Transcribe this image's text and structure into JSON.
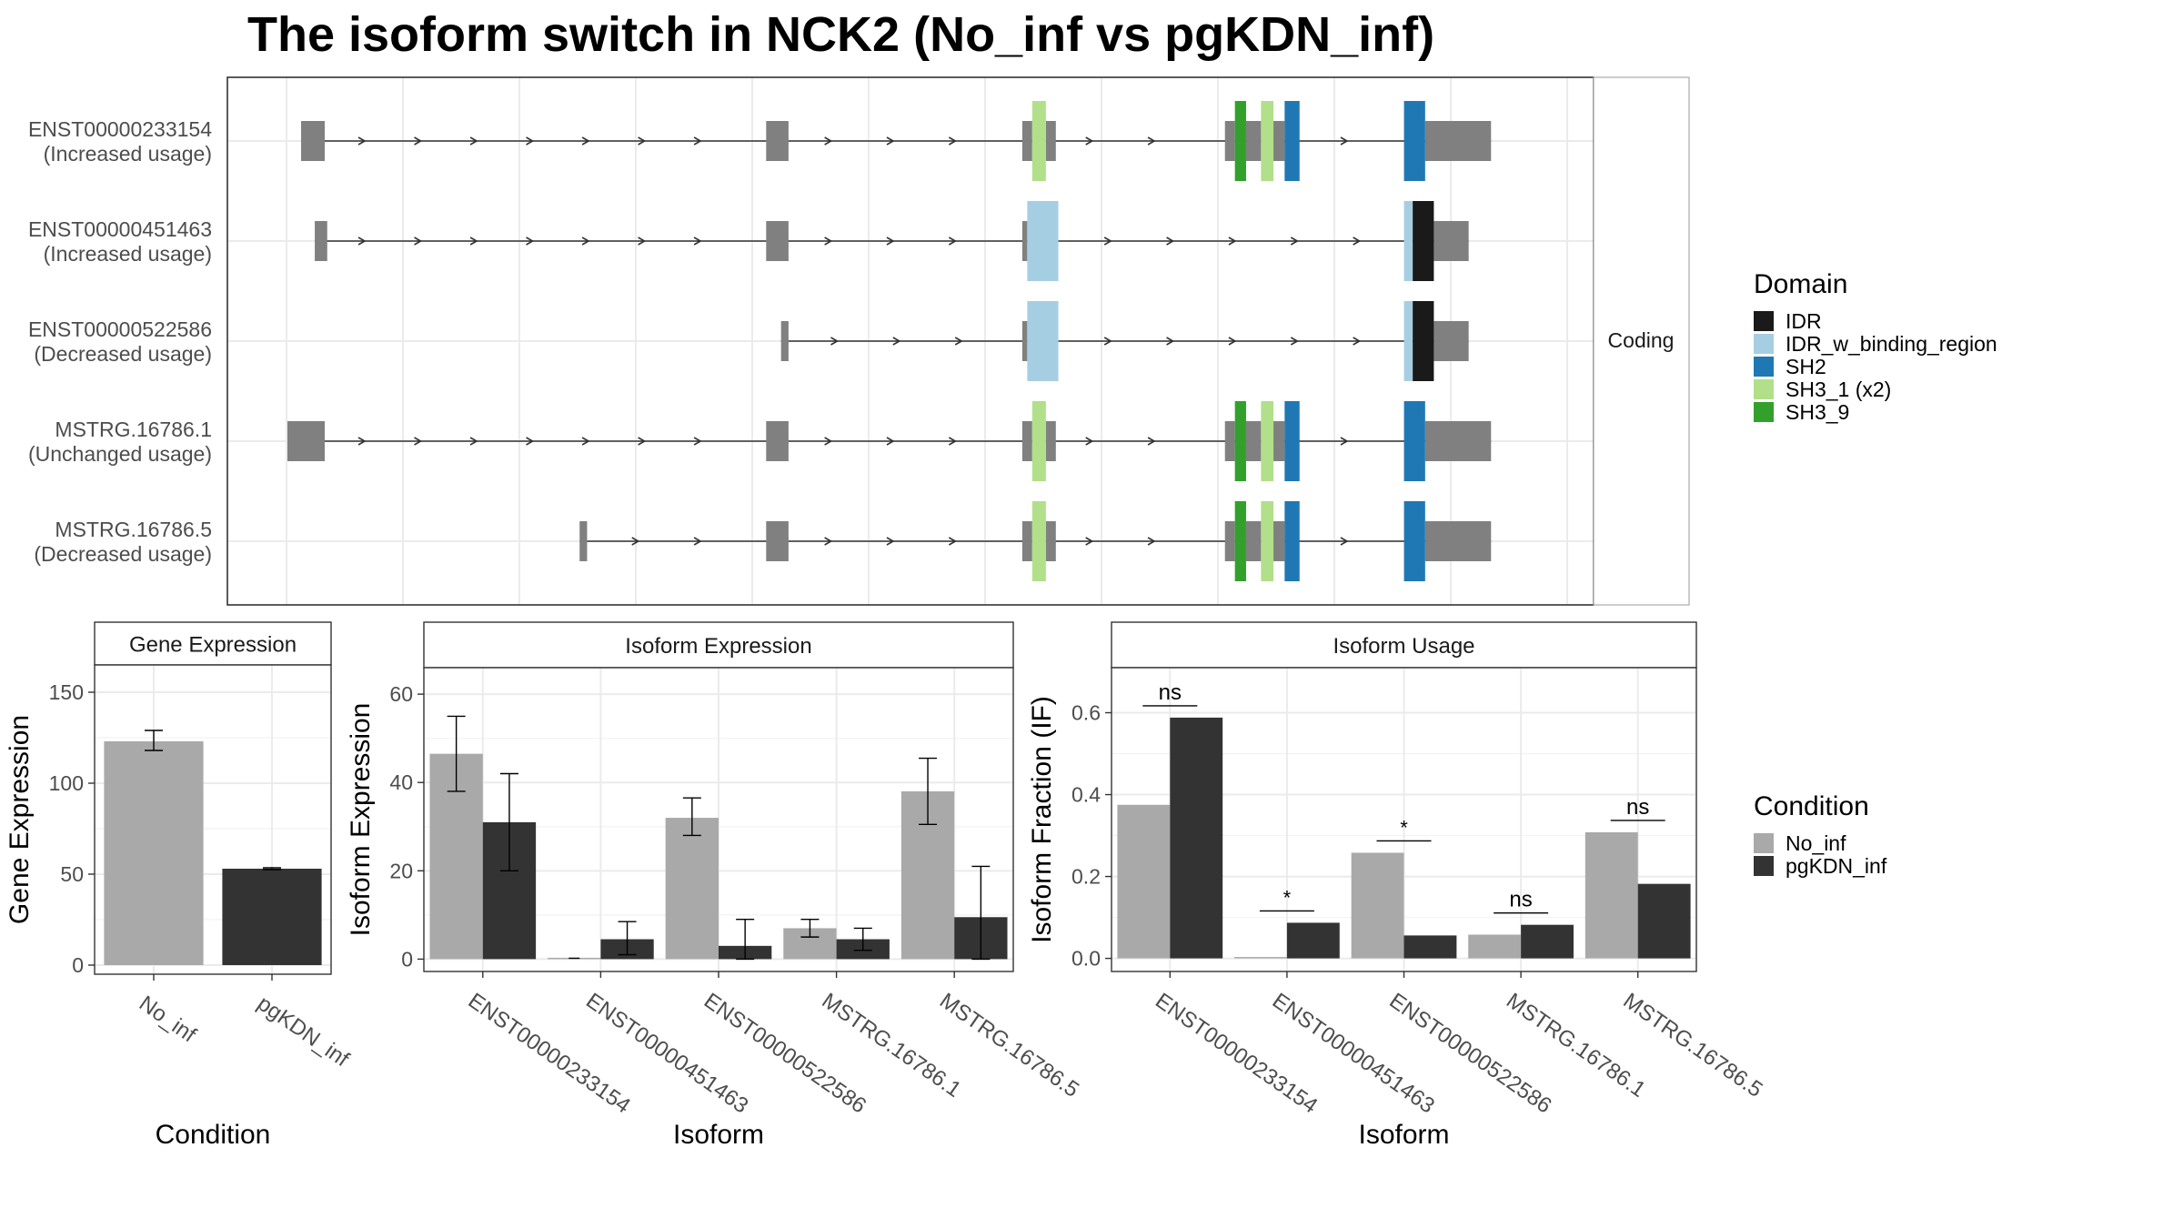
{
  "figure_title": "The isoform switch in NCK2 (No_inf vs pgKDN_inf)",
  "colors": {
    "exon": "#808080",
    "no_inf": "#A9A9A9",
    "pgkdn_inf": "#333333",
    "grid": "#EBEBEB",
    "IDR": "#1A1A1A",
    "IDR_w_binding_region": "#A6CEE3",
    "SH2": "#1F78B4",
    "SH3_1": "#B2DF8A",
    "SH3_9": "#33A02C"
  },
  "structure": {
    "facet_label": "Coding",
    "x_range": [
      0,
      100
    ],
    "transcripts": [
      {
        "id": "ENST00000233154",
        "usage": "(Increased usage)",
        "utr": [
          [
            1.1,
            3.0
          ],
          [
            38.5,
            40.3
          ],
          [
            59.1,
            59.9
          ],
          [
            61.0,
            61.8
          ],
          [
            75.4,
            76.2
          ],
          [
            77.1,
            78.3
          ],
          [
            79.3,
            80.2
          ],
          [
            91.5,
            96.8
          ]
        ],
        "cds": [
          [
            59.9,
            61.0,
            "SH3_1"
          ],
          [
            76.2,
            77.1,
            "SH3_9"
          ],
          [
            78.3,
            79.3,
            "SH3_1"
          ],
          [
            80.2,
            81.4,
            "SH2"
          ],
          [
            89.8,
            91.5,
            "SH2"
          ]
        ],
        "arrows": [
          6.0,
          10.5,
          15.0,
          19.5,
          24.0,
          28.5,
          33.0,
          43.5,
          48.5,
          53.5,
          64.5,
          69.5,
          85.0
        ]
      },
      {
        "id": "ENST00000451463",
        "usage": "(Increased usage)",
        "utr": [
          [
            2.2,
            3.2
          ],
          [
            38.5,
            40.3
          ],
          [
            59.1,
            59.5
          ],
          [
            92.2,
            95.0
          ]
        ],
        "cds": [
          [
            59.5,
            62.0,
            "IDR_w_binding_region"
          ],
          [
            89.8,
            90.5,
            "IDR_w_binding_region"
          ],
          [
            90.5,
            92.2,
            "IDR"
          ]
        ],
        "arrows": [
          6.0,
          10.5,
          15.0,
          19.5,
          24.0,
          28.5,
          33.0,
          43.5,
          48.5,
          53.5,
          66.0,
          71.0,
          76.0,
          81.0,
          86.0
        ]
      },
      {
        "id": "ENST00000522586",
        "usage": "(Decreased usage)",
        "utr": [
          [
            39.7,
            40.3
          ],
          [
            59.1,
            59.5
          ],
          [
            92.2,
            95.0
          ]
        ],
        "cds": [
          [
            59.5,
            62.0,
            "IDR_w_binding_region"
          ],
          [
            89.8,
            90.5,
            "IDR_w_binding_region"
          ],
          [
            90.5,
            92.2,
            "IDR"
          ]
        ],
        "arrows": [
          44.0,
          49.0,
          54.0,
          66.0,
          71.0,
          76.0,
          81.0,
          86.0
        ]
      },
      {
        "id": "MSTRG.16786.1",
        "usage": "(Unchanged usage)",
        "utr": [
          [
            0.0,
            3.0
          ],
          [
            38.5,
            40.3
          ],
          [
            59.1,
            59.9
          ],
          [
            61.0,
            61.8
          ],
          [
            75.4,
            76.2
          ],
          [
            77.1,
            78.3
          ],
          [
            79.3,
            80.2
          ],
          [
            91.5,
            96.8
          ]
        ],
        "cds": [
          [
            59.9,
            61.0,
            "SH3_1"
          ],
          [
            76.2,
            77.1,
            "SH3_9"
          ],
          [
            78.3,
            79.3,
            "SH3_1"
          ],
          [
            80.2,
            81.4,
            "SH2"
          ],
          [
            89.8,
            91.5,
            "SH2"
          ]
        ],
        "arrows": [
          6.0,
          10.5,
          15.0,
          19.5,
          24.0,
          28.5,
          33.0,
          43.5,
          48.5,
          53.5,
          64.5,
          69.5,
          85.0
        ]
      },
      {
        "id": "MSTRG.16786.5",
        "usage": "(Decreased usage)",
        "utr": [
          [
            23.5,
            24.1
          ],
          [
            38.5,
            40.3
          ],
          [
            59.1,
            59.9
          ],
          [
            61.0,
            61.8
          ],
          [
            75.4,
            76.2
          ],
          [
            77.1,
            78.3
          ],
          [
            79.3,
            80.2
          ],
          [
            91.5,
            96.8
          ]
        ],
        "cds": [
          [
            59.9,
            61.0,
            "SH3_1"
          ],
          [
            76.2,
            77.1,
            "SH3_9"
          ],
          [
            78.3,
            79.3,
            "SH3_1"
          ],
          [
            80.2,
            81.4,
            "SH2"
          ],
          [
            89.8,
            91.5,
            "SH2"
          ]
        ],
        "arrows": [
          28.0,
          33.0,
          43.5,
          48.5,
          53.5,
          64.5,
          69.5,
          85.0
        ]
      }
    ]
  },
  "legends": {
    "domain": {
      "title": "Domain",
      "items": [
        {
          "key": "IDR",
          "label": "IDR"
        },
        {
          "key": "IDR_w_binding_region",
          "label": "IDR_w_binding_region"
        },
        {
          "key": "SH2",
          "label": "SH2"
        },
        {
          "key": "SH3_1",
          "label": "SH3_1 (x2)"
        },
        {
          "key": "SH3_9",
          "label": "SH3_9"
        }
      ]
    },
    "condition": {
      "title": "Condition",
      "items": [
        {
          "key": "no_inf",
          "label": "No_inf"
        },
        {
          "key": "pgkdn_inf",
          "label": "pgKDN_inf"
        }
      ]
    }
  },
  "chart_data": [
    {
      "type": "bar",
      "title": "Gene Expression",
      "xlabel": "Condition",
      "ylabel": "Gene Expression",
      "categories": [
        "No_inf",
        "pgKDN_inf"
      ],
      "values": [
        123,
        53
      ],
      "errors": [
        [
          118,
          129
        ],
        [
          52.5,
          53.5
        ]
      ],
      "ylim": [
        -5,
        165
      ],
      "yticks": [
        0,
        50,
        100,
        150
      ]
    },
    {
      "type": "bar",
      "title": "Isoform Expression",
      "xlabel": "Isoform",
      "ylabel": "Isoform Expression",
      "categories": [
        "ENST00000233154",
        "ENST00000451463",
        "ENST00000522586",
        "MSTRG.16786.1",
        "MSTRG.16786.5"
      ],
      "series": [
        {
          "name": "No_inf",
          "values": [
            46.5,
            0.2,
            32,
            7,
            38
          ],
          "errors": [
            [
              38,
              55
            ],
            [
              0.2,
              0.2
            ],
            [
              28,
              36.5
            ],
            [
              5,
              9
            ],
            [
              30.5,
              45.5
            ]
          ]
        },
        {
          "name": "pgKDN_inf",
          "values": [
            31,
            4.5,
            3,
            4.5,
            9.5
          ],
          "errors": [
            [
              20,
              42
            ],
            [
              1,
              8.5
            ],
            [
              0,
              9
            ],
            [
              2,
              7
            ],
            [
              0,
              21
            ]
          ]
        }
      ],
      "ylim": [
        -2.8,
        66
      ],
      "yticks": [
        0,
        20,
        40,
        60
      ]
    },
    {
      "type": "bar",
      "title": "Isoform Usage",
      "xlabel": "Isoform",
      "ylabel": "Isoform Fraction (IF)",
      "categories": [
        "ENST00000233154",
        "ENST00000451463",
        "ENST00000522586",
        "MSTRG.16786.1",
        "MSTRG.16786.5"
      ],
      "series": [
        {
          "name": "No_inf",
          "values": [
            0.375,
            0.0,
            0.258,
            0.058,
            0.308
          ]
        },
        {
          "name": "pgKDN_inf",
          "values": [
            0.588,
            0.087,
            0.056,
            0.082,
            0.182
          ]
        }
      ],
      "significance": [
        "ns",
        "*",
        "*",
        "ns",
        "ns"
      ],
      "ylim": [
        -0.032,
        0.71
      ],
      "yticks": [
        0.0,
        0.2,
        0.4,
        0.6
      ]
    }
  ]
}
